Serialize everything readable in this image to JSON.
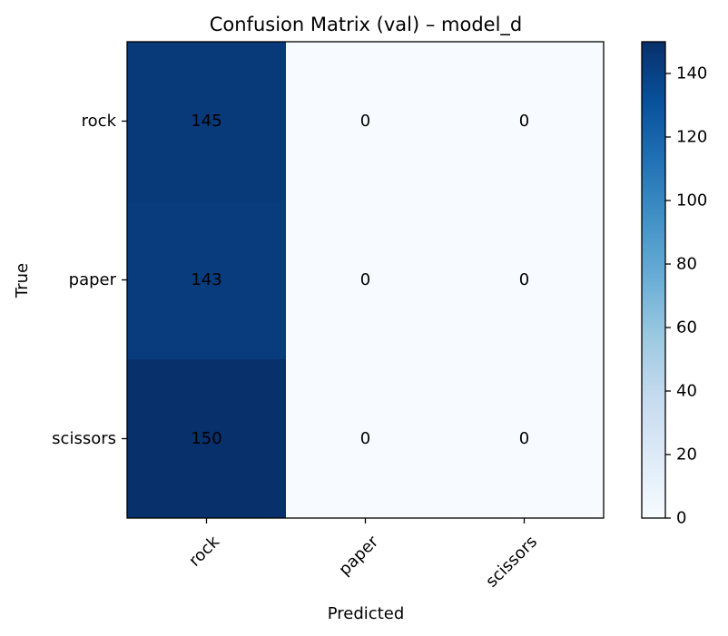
{
  "chart_data": {
    "type": "heatmap",
    "title": "Confusion Matrix (val) – model_d",
    "xlabel": "Predicted",
    "ylabel": "True",
    "x_categories": [
      "rock",
      "paper",
      "scissors"
    ],
    "y_categories": [
      "rock",
      "paper",
      "scissors"
    ],
    "values": [
      [
        145,
        0,
        0
      ],
      [
        143,
        0,
        0
      ],
      [
        150,
        0,
        0
      ]
    ],
    "colorbar": {
      "range": [
        0,
        150
      ],
      "ticks": [
        0,
        20,
        40,
        60,
        80,
        100,
        120,
        140
      ]
    },
    "colormap": "Blues"
  }
}
